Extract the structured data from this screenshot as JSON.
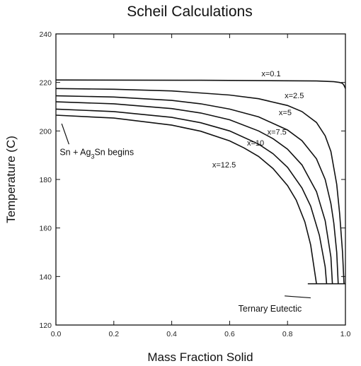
{
  "chart_data": {
    "type": "line",
    "title": "Scheil Calculations",
    "xlabel": "Mass Fraction Solid",
    "ylabel": "Temperature (C)",
    "xlim": [
      0.0,
      1.0
    ],
    "ylim": [
      120,
      240
    ],
    "xticks": [
      "0.0",
      "0.2",
      "0.4",
      "0.6",
      "0.8",
      "1.0"
    ],
    "yticks": [
      "120",
      "140",
      "160",
      "180",
      "200",
      "220",
      "240"
    ],
    "grid": false,
    "series": [
      {
        "name": "x=0.1",
        "x": [
          0.0,
          0.5,
          0.9,
          0.96,
          0.98,
          0.99,
          0.995,
          1.0
        ],
        "y": [
          221,
          220.9,
          220.6,
          220.3,
          220.0,
          219.6,
          218.8,
          217.5
        ]
      },
      {
        "name": "x=2.5",
        "x": [
          0.0,
          0.2,
          0.4,
          0.6,
          0.7,
          0.8,
          0.85,
          0.9,
          0.93,
          0.95,
          0.97,
          0.98,
          0.99,
          0.995
        ],
        "y": [
          217.5,
          217.2,
          216.5,
          214.8,
          213.3,
          210.5,
          208.0,
          203.5,
          198.0,
          191.5,
          178.0,
          166.0,
          150.0,
          137.0
        ]
      },
      {
        "name": "x=5",
        "x": [
          0.0,
          0.2,
          0.4,
          0.5,
          0.6,
          0.7,
          0.8,
          0.85,
          0.9,
          0.93,
          0.95,
          0.96,
          0.97,
          0.975
        ],
        "y": [
          214.5,
          214.0,
          212.6,
          211.2,
          209.0,
          205.8,
          200.4,
          196.0,
          188.5,
          180.0,
          170.0,
          162.0,
          150.0,
          137.0
        ]
      },
      {
        "name": "x=7.5",
        "x": [
          0.0,
          0.2,
          0.4,
          0.5,
          0.6,
          0.7,
          0.75,
          0.8,
          0.85,
          0.9,
          0.93,
          0.95,
          0.955
        ],
        "y": [
          212.0,
          211.2,
          209.2,
          207.4,
          204.6,
          200.0,
          196.8,
          192.5,
          186.0,
          175.0,
          163.0,
          148.0,
          137.0
        ]
      },
      {
        "name": "x=10",
        "x": [
          0.0,
          0.2,
          0.4,
          0.5,
          0.6,
          0.7,
          0.75,
          0.8,
          0.85,
          0.88,
          0.91,
          0.93,
          0.935
        ],
        "y": [
          209.0,
          208.0,
          205.6,
          203.4,
          200.0,
          194.6,
          190.6,
          185.0,
          176.5,
          169.0,
          157.0,
          144.0,
          137.0
        ]
      },
      {
        "name": "x=12.5",
        "x": [
          0.0,
          0.2,
          0.4,
          0.5,
          0.6,
          0.65,
          0.7,
          0.75,
          0.8,
          0.83,
          0.86,
          0.88,
          0.89,
          0.9
        ],
        "y": [
          206.5,
          205.3,
          202.4,
          199.9,
          195.9,
          193.0,
          189.5,
          184.5,
          177.5,
          171.5,
          162.5,
          153.0,
          145.0,
          137.0
        ]
      }
    ],
    "series_labels": [
      {
        "text": "x=0.1",
        "x": 0.71,
        "y": 222.5
      },
      {
        "text": "x=2.5",
        "x": 0.79,
        "y": 213.5
      },
      {
        "text": "x=5",
        "x": 0.77,
        "y": 206.5
      },
      {
        "text": "x=7.5",
        "x": 0.73,
        "y": 198.5
      },
      {
        "text": "x=10",
        "x": 0.66,
        "y": 194.0
      },
      {
        "text": "x=12.5",
        "x": 0.54,
        "y": 185.0
      }
    ],
    "eutectic_line": {
      "x": [
        0.87,
        1.0
      ],
      "y": 137
    },
    "annotations": [
      {
        "text": "Ternary Eutectic",
        "x": 0.63,
        "y": 125.5,
        "arrow_from": [
          0.79,
          132.0
        ],
        "arrow_to": [
          0.88,
          131.2
        ]
      },
      {
        "prefix": "Sn + Ag",
        "sub": "3",
        "suffix": "Sn begins",
        "x": 0.013,
        "y": 190.0,
        "arrow_from": [
          0.045,
          194.5
        ],
        "arrow_to": [
          0.02,
          203.0
        ]
      }
    ]
  }
}
